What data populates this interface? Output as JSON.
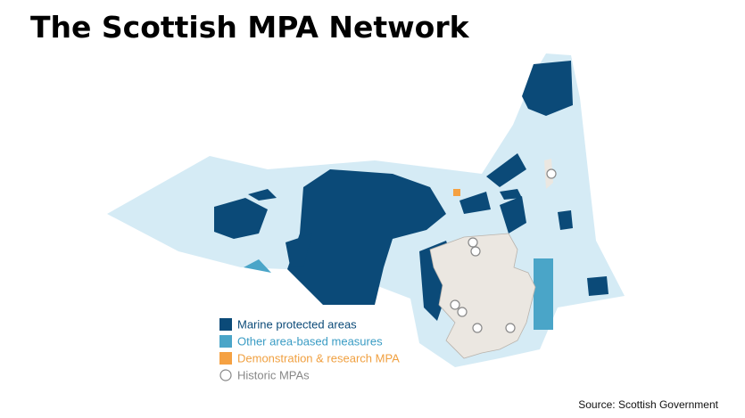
{
  "header": {
    "title": "The Scottish MPA Network"
  },
  "legend": {
    "items": [
      {
        "label": "Marine protected areas"
      },
      {
        "label": "Other area-based measures"
      },
      {
        "label": "Demonstration & research MPA"
      },
      {
        "label": "Historic MPAs"
      }
    ]
  },
  "footer": {
    "source": "Source: Scottish Government"
  }
}
